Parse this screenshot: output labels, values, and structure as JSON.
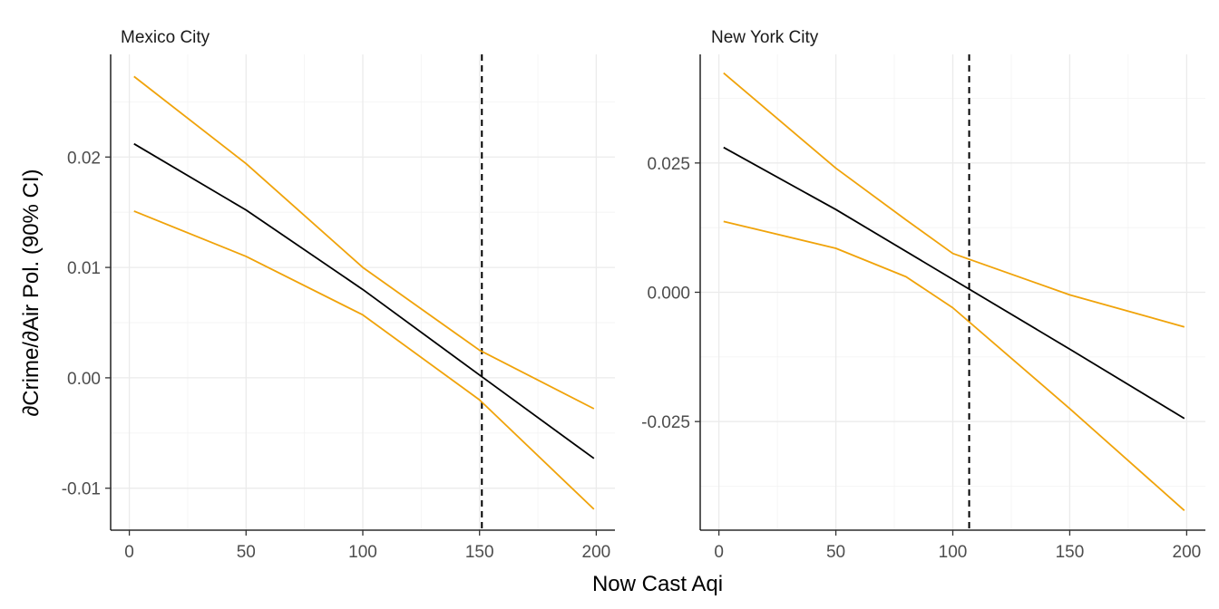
{
  "chart_data": [
    {
      "type": "line",
      "title": "Mexico City",
      "xlabel": "Now Cast Aqi",
      "ylabel": "∂Crime/∂Air Pol. (90% CI)",
      "xlim": [
        -8,
        208
      ],
      "ylim": [
        -0.0138,
        0.0293
      ],
      "x_ticks": [
        0,
        50,
        100,
        150,
        200
      ],
      "x_tick_labels": [
        "0",
        "50",
        "100",
        "150",
        "200"
      ],
      "y_ticks": [
        -0.01,
        0.0,
        0.01,
        0.02
      ],
      "y_tick_labels": [
        "-0.01",
        "0.00",
        "0.01",
        "0.02"
      ],
      "vline_x": 151,
      "colors": {
        "estimate": "#000000",
        "ci": "#f0a30a",
        "vline": "#000000"
      },
      "series": [
        {
          "role": "estimate",
          "x": [
            2,
            50,
            100,
            151,
            199
          ],
          "y": [
            0.0212,
            0.0152,
            0.008,
            0.0001,
            -0.0073
          ]
        },
        {
          "role": "ci-upper",
          "x": [
            2,
            50,
            100,
            150,
            199
          ],
          "y": [
            0.0273,
            0.0194,
            0.01,
            0.0025,
            -0.0028
          ]
        },
        {
          "role": "ci-lower",
          "x": [
            2,
            50,
            100,
            150,
            199
          ],
          "y": [
            0.0151,
            0.011,
            0.0057,
            -0.002,
            -0.0119
          ]
        }
      ]
    },
    {
      "type": "line",
      "title": "New York City",
      "xlabel": "Now Cast Aqi",
      "ylabel": "",
      "xlim": [
        -8,
        208
      ],
      "ylim": [
        -0.046,
        0.046
      ],
      "x_ticks": [
        0,
        50,
        100,
        150,
        200
      ],
      "x_tick_labels": [
        "0",
        "50",
        "100",
        "150",
        "200"
      ],
      "y_ticks": [
        -0.025,
        0.0,
        0.025
      ],
      "y_tick_labels": [
        "-0.025",
        "0.000",
        "0.025"
      ],
      "vline_x": 107,
      "colors": {
        "estimate": "#000000",
        "ci": "#f0a30a",
        "vline": "#000000"
      },
      "series": [
        {
          "role": "estimate",
          "x": [
            2,
            50,
            100,
            150,
            199
          ],
          "y": [
            0.028,
            0.016,
            0.0025,
            -0.011,
            -0.0244
          ]
        },
        {
          "role": "ci-upper",
          "x": [
            2,
            50,
            80,
            100,
            150,
            199
          ],
          "y": [
            0.0424,
            0.024,
            0.014,
            0.0075,
            -0.0005,
            -0.0067
          ]
        },
        {
          "role": "ci-lower",
          "x": [
            2,
            50,
            80,
            100,
            150,
            199
          ],
          "y": [
            0.0137,
            0.0085,
            0.003,
            -0.003,
            -0.0225,
            -0.0422
          ]
        }
      ]
    }
  ],
  "shared_xlabel": "Now Cast Aqi"
}
